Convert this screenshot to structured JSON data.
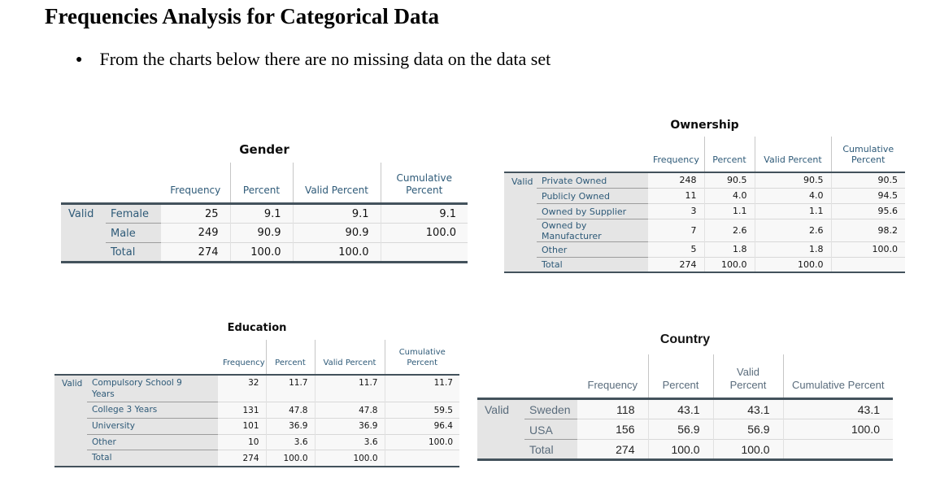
{
  "page": {
    "title": "Frequencies Analysis for Categorical Data",
    "bullet_glyph": "●",
    "bullet_text": "From the charts below there are no missing data on the data set"
  },
  "colors": {
    "header_text": "#2e5a78",
    "country_header_text": "#5a6c7c",
    "thick_border": "#43525c",
    "label_bg": "#e5e5e5",
    "data_bg": "#f8f8f8"
  },
  "tables": {
    "gender": {
      "id": "gender",
      "title": "Gender",
      "row_group": "Valid",
      "columns": [
        "Frequency",
        "Percent",
        "Valid Percent",
        "Cumulative Percent"
      ],
      "rows": [
        {
          "label": "Female",
          "values": [
            "25",
            "9.1",
            "9.1",
            "9.1"
          ]
        },
        {
          "label": "Male",
          "values": [
            "249",
            "90.9",
            "90.9",
            "100.0"
          ]
        },
        {
          "label": "Total",
          "values": [
            "274",
            "100.0",
            "100.0",
            ""
          ]
        }
      ]
    },
    "ownership": {
      "id": "ownership",
      "title": "Ownership",
      "row_group": "Valid",
      "columns": [
        "Frequency",
        "Percent",
        "Valid Percent",
        "Cumulative Percent"
      ],
      "rows": [
        {
          "label": "Private Owned",
          "values": [
            "248",
            "90.5",
            "90.5",
            "90.5"
          ]
        },
        {
          "label": "Publicly Owned",
          "values": [
            "11",
            "4.0",
            "4.0",
            "94.5"
          ]
        },
        {
          "label": "Owned by Supplier",
          "values": [
            "3",
            "1.1",
            "1.1",
            "95.6"
          ]
        },
        {
          "label": "Owned by Manufacturer",
          "values": [
            "7",
            "2.6",
            "2.6",
            "98.2"
          ]
        },
        {
          "label": "Other",
          "values": [
            "5",
            "1.8",
            "1.8",
            "100.0"
          ]
        },
        {
          "label": "Total",
          "values": [
            "274",
            "100.0",
            "100.0",
            ""
          ]
        }
      ]
    },
    "education": {
      "id": "education",
      "title": "Education",
      "row_group": "Valid",
      "columns": [
        "Frequency",
        "Percent",
        "Valid Percent",
        "Cumulative Percent"
      ],
      "rows": [
        {
          "label": "Compulsory School 9 Years",
          "values": [
            "32",
            "11.7",
            "11.7",
            "11.7"
          ]
        },
        {
          "label": "College 3 Years",
          "values": [
            "131",
            "47.8",
            "47.8",
            "59.5"
          ]
        },
        {
          "label": "University",
          "values": [
            "101",
            "36.9",
            "36.9",
            "96.4"
          ]
        },
        {
          "label": "Other",
          "values": [
            "10",
            "3.6",
            "3.6",
            "100.0"
          ]
        },
        {
          "label": "Total",
          "values": [
            "274",
            "100.0",
            "100.0",
            ""
          ]
        }
      ]
    },
    "country": {
      "id": "country",
      "title": "Country",
      "row_group": "Valid",
      "columns": [
        "Frequency",
        "Percent",
        "Valid Percent",
        "Cumulative Percent"
      ],
      "rows": [
        {
          "label": "Sweden",
          "values": [
            "118",
            "43.1",
            "43.1",
            "43.1"
          ]
        },
        {
          "label": "USA",
          "values": [
            "156",
            "56.9",
            "56.9",
            "100.0"
          ]
        },
        {
          "label": "Total",
          "values": [
            "274",
            "100.0",
            "100.0",
            ""
          ]
        }
      ]
    }
  }
}
